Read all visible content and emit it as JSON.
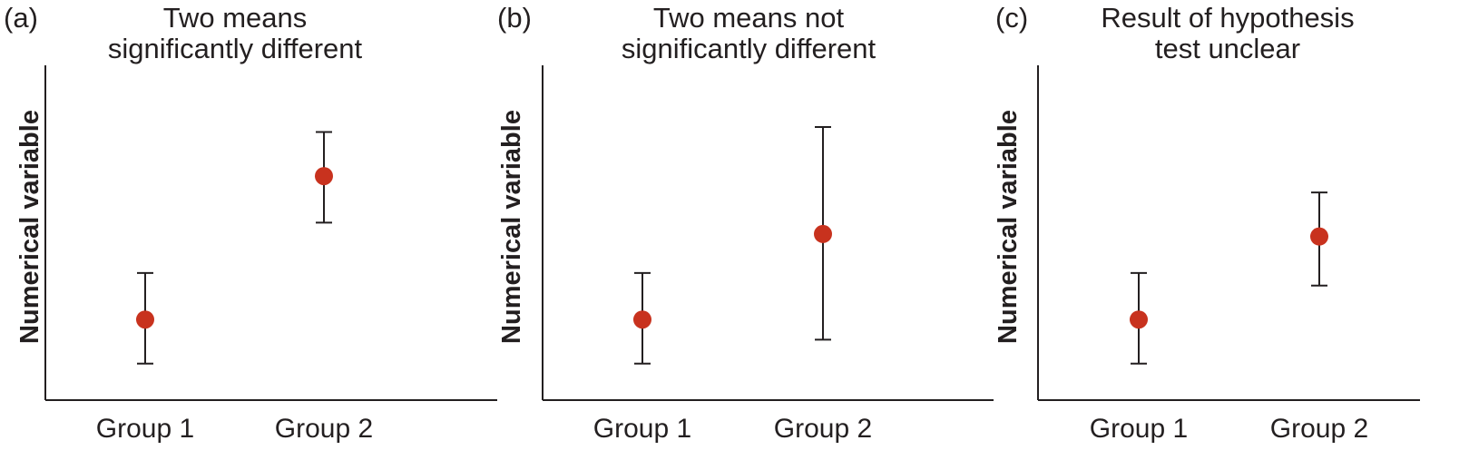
{
  "chart_data": [
    {
      "type": "scatter",
      "panel_label": "(a)",
      "title": [
        "Two means",
        "significantly different"
      ],
      "ylabel": "Numerical variable",
      "categories": [
        "Group 1",
        "Group 2"
      ],
      "series": [
        {
          "means": [
            2.2,
            7.9
          ],
          "lower": [
            0.45,
            6.05
          ],
          "upper": [
            4.05,
            9.65
          ]
        }
      ],
      "ylim": [
        -1,
        12.3
      ],
      "yticks_shown": false,
      "grid": false,
      "marker_color": "#c8321e"
    },
    {
      "type": "scatter",
      "panel_label": "(b)",
      "title": [
        "Two means not",
        "significantly different"
      ],
      "ylabel": "Numerical variable",
      "categories": [
        "Group 1",
        "Group 2"
      ],
      "series": [
        {
          "means": [
            2.2,
            5.6
          ],
          "lower": [
            0.45,
            1.4
          ],
          "upper": [
            4.05,
            9.85
          ]
        }
      ],
      "ylim": [
        -1,
        12.3
      ],
      "yticks_shown": false,
      "grid": false,
      "marker_color": "#c8321e"
    },
    {
      "type": "scatter",
      "panel_label": "(c)",
      "title": [
        "Result of hypothesis",
        "test unclear"
      ],
      "ylabel": "Numerical variable",
      "categories": [
        "Group 1",
        "Group 2"
      ],
      "series": [
        {
          "means": [
            2.2,
            5.5
          ],
          "lower": [
            0.45,
            3.55
          ],
          "upper": [
            4.05,
            7.25
          ]
        }
      ],
      "ylim": [
        -1,
        12.3
      ],
      "yticks_shown": false,
      "grid": false,
      "marker_color": "#c8321e"
    }
  ]
}
